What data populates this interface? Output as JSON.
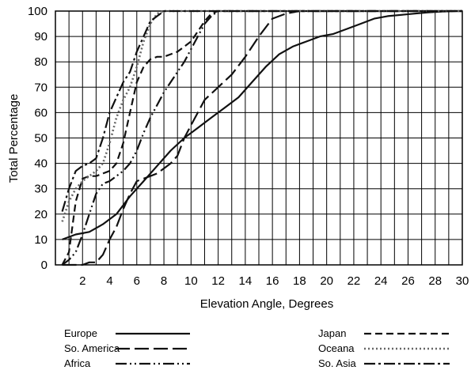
{
  "chart_data": {
    "type": "line",
    "xlabel": "Elevation Angle, Degrees",
    "ylabel": "Total Percentage",
    "xlim": [
      0,
      30
    ],
    "ylim": [
      0,
      100
    ],
    "x_ticks": [
      "2",
      "4",
      "6",
      "8",
      "10",
      "12",
      "14",
      "16",
      "18",
      "20",
      "22",
      "24",
      "26",
      "28",
      "30"
    ],
    "y_ticks": [
      "0",
      "10",
      "20",
      "30",
      "40",
      "50",
      "60",
      "70",
      "80",
      "90",
      "100"
    ],
    "grid": true,
    "legend_placement": "bottom",
    "series": [
      {
        "name": "Europe",
        "dash": "solid",
        "x": [
          0.5,
          1.5,
          2.5,
          3.5,
          4.5,
          5.5,
          6.5,
          7.5,
          8.5,
          9.5,
          10.5,
          11.5,
          12.5,
          13.5,
          14.5,
          15.5,
          16.5,
          17.5,
          18.5,
          19.5,
          20.5,
          21.5,
          22.5,
          23.5,
          24.5,
          25.5,
          26.5,
          27.5,
          28.5,
          29.5,
          30
        ],
        "y": [
          10,
          12,
          13,
          16,
          20,
          27,
          33,
          39,
          45,
          50,
          54,
          58,
          62,
          66,
          72,
          78,
          83,
          86,
          88,
          90,
          91,
          93,
          95,
          97,
          98,
          98.5,
          99,
          99.5,
          99.8,
          100,
          100
        ]
      },
      {
        "name": "So. America",
        "dash": "longdash",
        "x": [
          0.5,
          1,
          1.5,
          2,
          2.5,
          3,
          3.5,
          4,
          4.5,
          5,
          5.5,
          6,
          6.5,
          7,
          7.5,
          8,
          8.5,
          9,
          9.5,
          10,
          10.5,
          11,
          12,
          13,
          14,
          15,
          16,
          17,
          18,
          30
        ],
        "y": [
          0,
          0,
          0,
          0,
          1,
          1,
          4,
          10,
          15,
          22,
          28,
          33,
          34,
          35,
          36,
          38,
          40,
          43,
          50,
          55,
          60,
          65,
          70,
          75,
          82,
          90,
          97,
          99,
          100,
          100
        ]
      },
      {
        "name": "Africa",
        "dash": "dashdotdot",
        "x": [
          0.5,
          1,
          1.5,
          2,
          2.5,
          3,
          3.5,
          4,
          4.5,
          5,
          5.5,
          6,
          6.5,
          7,
          7.5,
          8,
          8.5,
          9,
          9.5,
          10,
          10.5,
          11,
          11.5,
          12,
          30
        ],
        "y": [
          0,
          2,
          5,
          12,
          20,
          28,
          32,
          33,
          35,
          37,
          40,
          45,
          52,
          58,
          63,
          68,
          72,
          76,
          80,
          85,
          90,
          95,
          98,
          100,
          100
        ]
      },
      {
        "name": "Japan",
        "dash": "dash",
        "x": [
          0.5,
          1,
          1.5,
          2,
          2.5,
          3,
          3.5,
          4,
          4.5,
          5,
          5.5,
          6,
          6.5,
          7,
          7.5,
          8,
          8.5,
          9,
          9.5,
          10,
          10.5,
          11,
          11.5,
          12,
          30
        ],
        "y": [
          0,
          5,
          25,
          34,
          35,
          35,
          36,
          37,
          40,
          48,
          60,
          72,
          78,
          81,
          82,
          82,
          83,
          84,
          86,
          88,
          92,
          96,
          99,
          100,
          100
        ]
      },
      {
        "name": "Oceana",
        "dash": "dot",
        "x": [
          0.5,
          1,
          1.5,
          2,
          2.5,
          3,
          3.5,
          4,
          4.5,
          5,
          5.5,
          6,
          6.5,
          7,
          7.5,
          8,
          8.5,
          30
        ],
        "y": [
          17,
          25,
          30,
          33,
          35,
          37,
          40,
          48,
          58,
          65,
          70,
          78,
          88,
          95,
          99,
          100,
          100,
          100
        ]
      },
      {
        "name": "So. Asia",
        "dash": "dashdot",
        "x": [
          0.5,
          1,
          1.5,
          2,
          2.5,
          3,
          3.5,
          4,
          4.5,
          5,
          5.5,
          6,
          6.5,
          7,
          7.5,
          8,
          30
        ],
        "y": [
          21,
          30,
          37,
          39,
          40,
          42,
          50,
          60,
          66,
          72,
          76,
          84,
          90,
          96,
          98,
          100,
          100
        ]
      }
    ]
  }
}
